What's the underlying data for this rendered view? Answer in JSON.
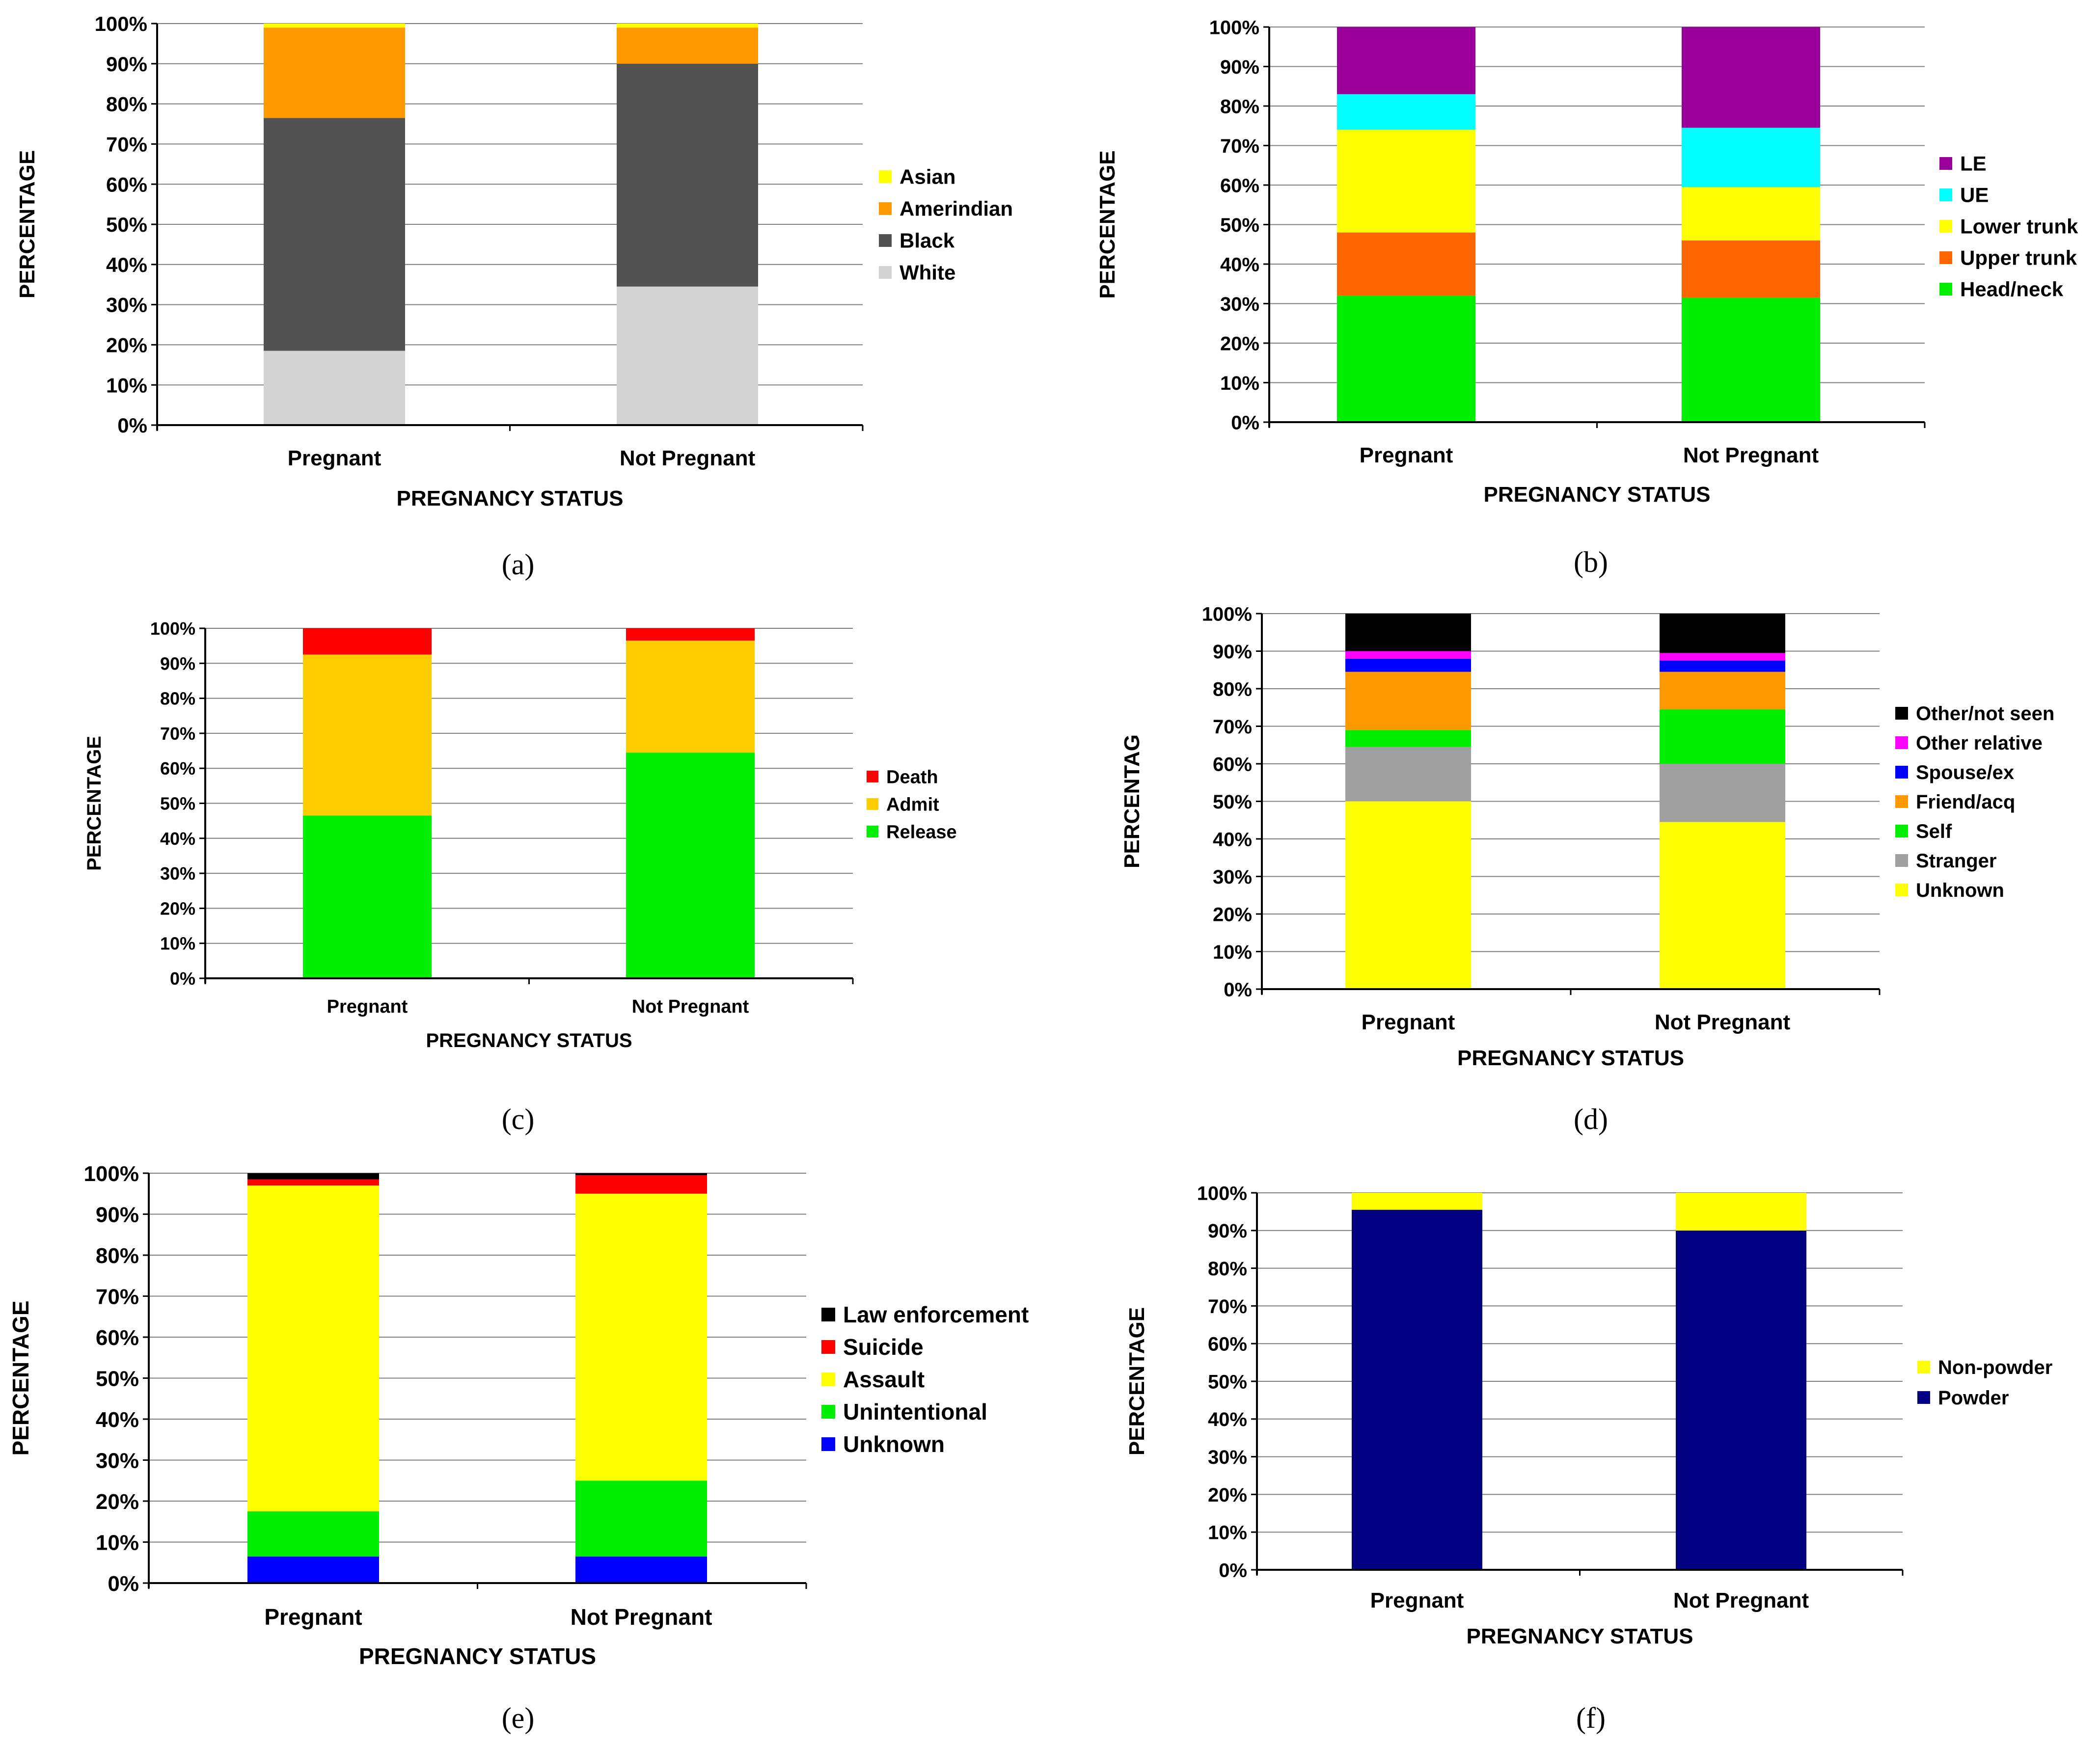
{
  "chart_data": [
    {
      "type": "bar",
      "stacked": true,
      "panel_label": "(a)",
      "ylabel": "PERCENTAGE",
      "xlabel": "PREGNANCY STATUS",
      "ylim": [
        0,
        100
      ],
      "yticks": [
        "0%",
        "10%",
        "20%",
        "30%",
        "40%",
        "50%",
        "60%",
        "70%",
        "80%",
        "90%",
        "100%"
      ],
      "categories": [
        "Pregnant",
        "Not Pregnant"
      ],
      "grid": true,
      "legend_position": "right",
      "series": [
        {
          "name": "White",
          "color": "#d3d3d3",
          "values": [
            18.5,
            34.5
          ]
        },
        {
          "name": "Black",
          "color": "#525252",
          "values": [
            58,
            55.5
          ]
        },
        {
          "name": "Amerindian",
          "color": "#ff9900",
          "values": [
            22.5,
            9
          ]
        },
        {
          "name": "Asian",
          "color": "#ffff00",
          "values": [
            1,
            1
          ]
        }
      ]
    },
    {
      "type": "bar",
      "stacked": true,
      "panel_label": "(b)",
      "ylabel": "PERCENTAGE",
      "xlabel": "PREGNANCY STATUS",
      "ylim": [
        0,
        100
      ],
      "yticks": [
        "0%",
        "10%",
        "20%",
        "30%",
        "40%",
        "50%",
        "60%",
        "70%",
        "80%",
        "90%",
        "100%"
      ],
      "categories": [
        "Pregnant",
        "Not Pregnant"
      ],
      "grid": true,
      "legend_position": "right",
      "series": [
        {
          "name": "Head/neck",
          "color": "#00ee00",
          "values": [
            32,
            31.5
          ]
        },
        {
          "name": "Upper trunk",
          "color": "#ff6600",
          "values": [
            16,
            14.5
          ]
        },
        {
          "name": "Lower trunk",
          "color": "#ffff00",
          "values": [
            26,
            13.5
          ]
        },
        {
          "name": "UE",
          "color": "#00ffff",
          "values": [
            9,
            15
          ]
        },
        {
          "name": "LE",
          "color": "#990099",
          "values": [
            17,
            25.5
          ]
        }
      ]
    },
    {
      "type": "bar",
      "stacked": true,
      "panel_label": "(c)",
      "ylabel": "PERCENTAGE",
      "xlabel": "PREGNANCY STATUS",
      "ylim": [
        0,
        100
      ],
      "yticks": [
        "0%",
        "10%",
        "20%",
        "30%",
        "40%",
        "50%",
        "60%",
        "70%",
        "80%",
        "90%",
        "100%"
      ],
      "categories": [
        "Pregnant",
        "Not Pregnant"
      ],
      "grid": true,
      "legend_position": "right",
      "series": [
        {
          "name": "Release",
          "color": "#00ee00",
          "values": [
            46.5,
            64.5
          ]
        },
        {
          "name": "Admit",
          "color": "#ffcc00",
          "values": [
            46,
            32
          ]
        },
        {
          "name": "Death",
          "color": "#ff0000",
          "values": [
            7.5,
            3.5
          ]
        }
      ]
    },
    {
      "type": "bar",
      "stacked": true,
      "panel_label": "(d)",
      "ylabel": "PERCENTAG",
      "xlabel": "PREGNANCY STATUS",
      "ylim": [
        0,
        100
      ],
      "yticks": [
        "0%",
        "10%",
        "20%",
        "30%",
        "40%",
        "50%",
        "60%",
        "70%",
        "80%",
        "90%",
        "100%"
      ],
      "categories": [
        "Pregnant",
        "Not Pregnant"
      ],
      "grid": true,
      "legend_position": "right",
      "series": [
        {
          "name": "Unknown",
          "color": "#ffff00",
          "values": [
            50,
            44.5
          ]
        },
        {
          "name": "Stranger",
          "color": "#a0a0a0",
          "values": [
            14.5,
            15.5
          ]
        },
        {
          "name": "Self",
          "color": "#00ee00",
          "values": [
            4.5,
            14.5
          ]
        },
        {
          "name": "Friend/acq",
          "color": "#ff9900",
          "values": [
            15.5,
            10
          ]
        },
        {
          "name": "Spouse/ex",
          "color": "#0000ff",
          "values": [
            3.5,
            3
          ]
        },
        {
          "name": "Other relative",
          "color": "#ff00ff",
          "values": [
            2,
            2
          ]
        },
        {
          "name": "Other/not seen",
          "color": "#000000",
          "values": [
            10,
            10.5
          ]
        }
      ]
    },
    {
      "type": "bar",
      "stacked": true,
      "panel_label": "(e)",
      "ylabel": "PERCENTAGE",
      "xlabel": "PREGNANCY STATUS",
      "ylim": [
        0,
        100
      ],
      "yticks": [
        "0%",
        "10%",
        "20%",
        "30%",
        "40%",
        "50%",
        "60%",
        "70%",
        "80%",
        "90%",
        "100%"
      ],
      "categories": [
        "Pregnant",
        "Not Pregnant"
      ],
      "grid": true,
      "legend_position": "right",
      "series": [
        {
          "name": "Unknown",
          "color": "#0000ff",
          "values": [
            6.5,
            6.5
          ]
        },
        {
          "name": "Unintentional",
          "color": "#00ee00",
          "values": [
            11,
            18.5
          ]
        },
        {
          "name": "Assault",
          "color": "#ffff00",
          "values": [
            79.5,
            70
          ]
        },
        {
          "name": "Suicide",
          "color": "#ff0000",
          "values": [
            1.5,
            4.5
          ]
        },
        {
          "name": "Law enforcement",
          "color": "#000000",
          "values": [
            1.5,
            0.5
          ]
        }
      ]
    },
    {
      "type": "bar",
      "stacked": true,
      "panel_label": "(f)",
      "ylabel": "PERCENTAGE",
      "xlabel": "PREGNANCY STATUS",
      "ylim": [
        0,
        100
      ],
      "yticks": [
        "0%",
        "10%",
        "20%",
        "30%",
        "40%",
        "50%",
        "60%",
        "70%",
        "80%",
        "90%",
        "100%"
      ],
      "categories": [
        "Pregnant",
        "Not Pregnant"
      ],
      "grid": true,
      "legend_position": "right",
      "series": [
        {
          "name": "Powder",
          "color": "#000080",
          "values": [
            95.5,
            90
          ]
        },
        {
          "name": "Non-powder",
          "color": "#ffff00",
          "values": [
            4.5,
            10
          ]
        }
      ]
    }
  ]
}
